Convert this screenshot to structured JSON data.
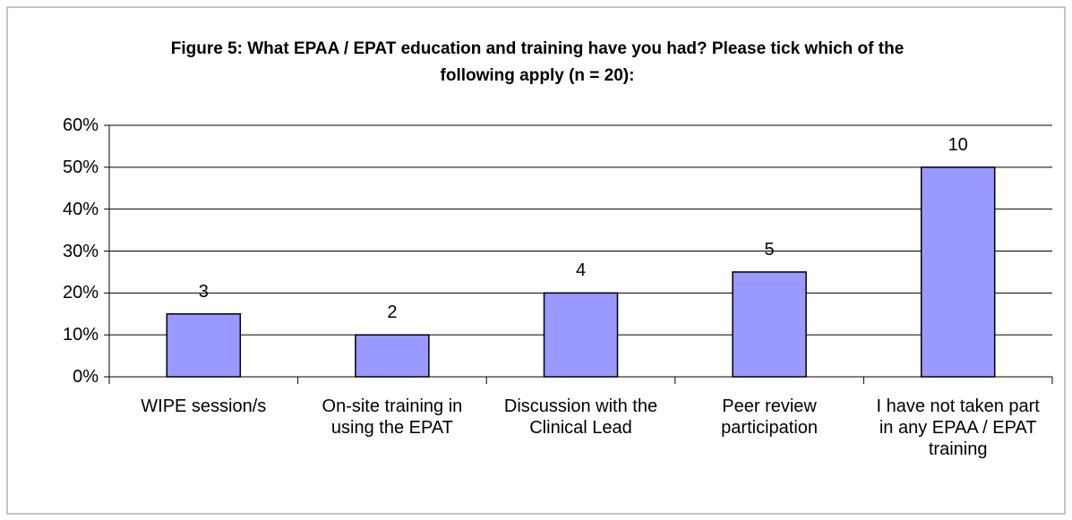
{
  "chart_data": {
    "type": "bar",
    "title": "Figure 5: What EPAA / EPAT education and training have you had? Please tick which of the following apply (n = 20):",
    "categories": [
      "WIPE session/s",
      "On-site training in using the EPAT",
      "Discussion with the Clinical Lead",
      "Peer review participation",
      "I have not taken part in any EPAA / EPAT training"
    ],
    "values": [
      15,
      10,
      20,
      25,
      50
    ],
    "counts": [
      3,
      2,
      4,
      5,
      10
    ],
    "color": "#9999ff",
    "ylim": [
      0,
      60
    ],
    "yticks": [
      {
        "value": 0,
        "label": "0%"
      },
      {
        "value": 10,
        "label": "10%"
      },
      {
        "value": 20,
        "label": "20%"
      },
      {
        "value": 30,
        "label": "30%"
      },
      {
        "value": 40,
        "label": "40%"
      },
      {
        "value": 50,
        "label": "50%"
      },
      {
        "value": 60,
        "label": "60%"
      }
    ],
    "grid": true
  }
}
